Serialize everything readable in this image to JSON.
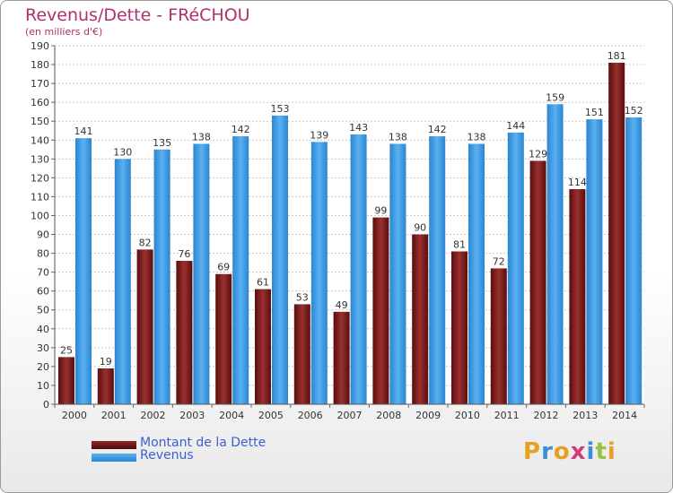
{
  "chart_data": {
    "type": "bar",
    "title": "Revenus/Dette - FRéCHOU",
    "subtitle": "(en milliers d'€)",
    "categories": [
      "2000",
      "2001",
      "2002",
      "2003",
      "2004",
      "2005",
      "2006",
      "2007",
      "2008",
      "2009",
      "2010",
      "2011",
      "2012",
      "2013",
      "2014"
    ],
    "series": [
      {
        "name": "Montant de la Dette",
        "color": "#7a1e1e",
        "values": [
          25,
          19,
          82,
          76,
          69,
          61,
          53,
          49,
          99,
          90,
          81,
          72,
          129,
          114,
          181
        ]
      },
      {
        "name": "Revenus",
        "color": "#3d9be0",
        "values": [
          141,
          130,
          135,
          138,
          142,
          153,
          139,
          143,
          138,
          142,
          138,
          144,
          159,
          151,
          152
        ]
      }
    ],
    "ylim": [
      0,
      190
    ],
    "yticks": [
      0,
      10,
      20,
      30,
      40,
      50,
      60,
      70,
      80,
      90,
      100,
      110,
      120,
      130,
      140,
      150,
      160,
      170,
      180,
      190
    ],
    "grid": true,
    "legend_position": "bottom-left"
  },
  "logo": {
    "text": "Proxiti",
    "letters": [
      "P",
      "r",
      "o",
      "x",
      "i",
      "t",
      "i"
    ],
    "colors": [
      "#e8a020",
      "#3a8fd8",
      "#e8a020",
      "#d23c7a",
      "#3a8fd8",
      "#9ac23c",
      "#e8a020"
    ]
  }
}
